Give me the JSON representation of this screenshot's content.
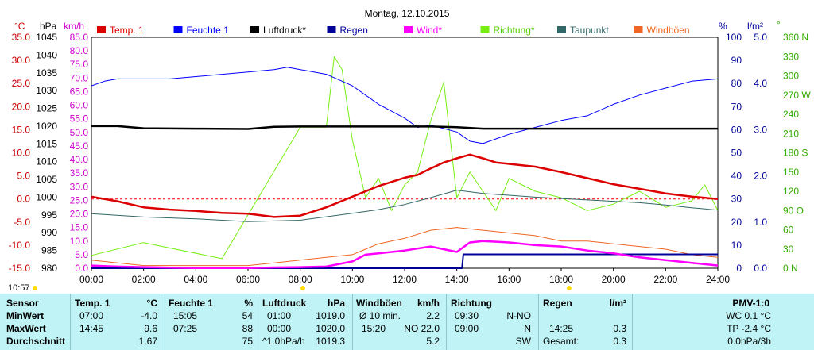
{
  "title": "Montag, 12.10.2015",
  "clock": "10:57",
  "units": {
    "temp": "°C",
    "hpa": "hPa",
    "kmh": "km/h",
    "pct": "%",
    "rain": "l/m²",
    "deg": "°"
  },
  "legend": [
    {
      "name": "Temp. 1",
      "color": "#dd0000"
    },
    {
      "name": "Feuchte 1",
      "color": "#0000ff"
    },
    {
      "name": "Luftdruck*",
      "color": "#000000"
    },
    {
      "name": "Regen",
      "color": "#000099"
    },
    {
      "name": "Wind*",
      "color": "#ff00ff"
    },
    {
      "name": "Richtung*",
      "color": "#77ee11"
    },
    {
      "name": "Taupunkt",
      "color": "#336666"
    },
    {
      "name": "Windböen",
      "color": "#ee6622"
    }
  ],
  "axes": {
    "temp": {
      "ticks": [
        "35.0",
        "30.0",
        "25.0",
        "20.0",
        "15.0",
        "10.0",
        "5.0",
        "0.0",
        "-5.0",
        "-10.0",
        "-15.0"
      ],
      "color": "#cc0000"
    },
    "hpa": {
      "ticks": [
        "1045",
        "1040",
        "1035",
        "1030",
        "1025",
        "1020",
        "1015",
        "1010",
        "1005",
        "1000",
        "995",
        "990",
        "985",
        "980"
      ],
      "color": "#000000"
    },
    "kmh": {
      "ticks": [
        "85.0",
        "80.0",
        "75.0",
        "70.0",
        "65.0",
        "60.0",
        "55.0",
        "50.0",
        "45.0",
        "40.0",
        "35.0",
        "30.0",
        "25.0",
        "20.0",
        "15.0",
        "10.0",
        "5.0",
        "0.0"
      ],
      "color": "#cc00cc"
    },
    "pct": {
      "ticks": [
        "100",
        "90",
        "80",
        "70",
        "60",
        "50",
        "40",
        "30",
        "20",
        "10",
        "0"
      ],
      "color": "#000099"
    },
    "rain": {
      "ticks": [
        "5.0",
        "4.0",
        "3.0",
        "2.0",
        "1.0",
        "0.0"
      ],
      "color": "#000099"
    },
    "deg": {
      "ticks": [
        "360 N",
        "330",
        "300",
        "270 W",
        "240",
        "210",
        "180 S",
        "150",
        "120",
        "90 O",
        "60",
        "30",
        "0 N"
      ],
      "color": "#33aa00"
    },
    "time": {
      "ticks": [
        "00:00",
        "02:00",
        "04:00",
        "06:00",
        "08:00",
        "10:00",
        "12:00",
        "14:00",
        "16:00",
        "18:00",
        "20:00",
        "22:00",
        "24:00"
      ]
    }
  },
  "chart_data": {
    "type": "line",
    "title": "Montag, 12.10.2015",
    "x_unit": "hour",
    "xlim": [
      0,
      24
    ],
    "series": [
      {
        "name": "Temp. 1",
        "unit": "°C",
        "ylim": [
          -15,
          35
        ],
        "x": [
          0,
          1,
          2,
          3,
          4,
          5,
          6,
          7,
          8,
          9,
          10,
          11,
          12,
          12.5,
          13,
          13.5,
          14,
          14.5,
          15,
          15.5,
          16,
          17,
          18,
          19,
          20,
          21,
          22,
          23,
          24
        ],
        "y": [
          0.5,
          -0.5,
          -1.8,
          -2.3,
          -2.6,
          -3.0,
          -3.2,
          -3.9,
          -3.6,
          -1.8,
          0.5,
          2.8,
          4.6,
          5.2,
          6.6,
          7.9,
          8.8,
          9.6,
          8.8,
          7.9,
          7.6,
          7.0,
          5.8,
          4.5,
          3.2,
          2.2,
          1.2,
          0.5,
          0.0
        ]
      },
      {
        "name": "Feuchte 1",
        "unit": "%",
        "ylim": [
          0,
          100
        ],
        "x": [
          0,
          0.5,
          1,
          2,
          3,
          4,
          5,
          6,
          7,
          7.5,
          8,
          9,
          10,
          11,
          12,
          12.5,
          13,
          14,
          14.5,
          15,
          15.5,
          16,
          17,
          18,
          19,
          20,
          21,
          22,
          23,
          24
        ],
        "y": [
          79,
          81,
          82,
          82,
          82,
          83,
          84,
          85,
          86,
          87,
          86,
          84,
          79,
          71,
          65,
          61,
          62,
          59,
          55,
          54,
          56,
          58,
          61,
          64,
          66,
          71,
          75,
          78,
          81,
          82
        ]
      },
      {
        "name": "Luftdruck*",
        "unit": "hPa",
        "ylim": [
          980,
          1045
        ],
        "x": [
          0,
          1,
          2,
          4,
          6,
          7,
          8,
          10,
          12,
          13,
          14,
          15,
          16,
          18,
          20,
          22,
          24
        ],
        "y": [
          1020.0,
          1020.0,
          1019.4,
          1019.3,
          1019.2,
          1019.8,
          1019.9,
          1019.9,
          1019.9,
          1019.9,
          1019.7,
          1019.3,
          1019.3,
          1019.3,
          1019.3,
          1019.3,
          1019.3
        ]
      },
      {
        "name": "Regen",
        "unit": "l/m²",
        "ylim": [
          0,
          5
        ],
        "x": [
          0,
          14.2,
          14.25,
          24
        ],
        "y": [
          0,
          0,
          0.3,
          0.3
        ]
      },
      {
        "name": "Wind*",
        "unit": "km/h",
        "ylim": [
          0,
          85
        ],
        "x": [
          0,
          1,
          2,
          3,
          4,
          5,
          6,
          7,
          8,
          9,
          10,
          10.5,
          11,
          12,
          13,
          14,
          14.5,
          15,
          16,
          17,
          18,
          19,
          20,
          21,
          22,
          23,
          24
        ],
        "y": [
          1.0,
          0.6,
          0.4,
          0.2,
          0.1,
          0.1,
          0.1,
          0.3,
          0.4,
          0.6,
          2.5,
          5.0,
          5.5,
          6.5,
          8.0,
          6.0,
          9.5,
          10.0,
          9.5,
          8.5,
          8.0,
          6.5,
          5.5,
          4.0,
          3.0,
          2.0,
          1.0
        ]
      },
      {
        "name": "Richtung*",
        "unit": "°",
        "ylim": [
          0,
          360
        ],
        "x": [
          0,
          2,
          5,
          8,
          9,
          9.3,
          9.6,
          10,
          10.5,
          11,
          11.5,
          12,
          12.5,
          13,
          13.5,
          14,
          14.5,
          15,
          15.5,
          16,
          17,
          18,
          19,
          20,
          21,
          22,
          23,
          23.5,
          24
        ],
        "y": [
          20,
          40,
          15,
          220,
          220,
          330,
          310,
          200,
          110,
          140,
          90,
          130,
          150,
          230,
          290,
          110,
          150,
          120,
          90,
          140,
          120,
          110,
          90,
          100,
          120,
          95,
          105,
          130,
          90
        ]
      },
      {
        "name": "Taupunkt",
        "unit": "°C",
        "ylim": [
          -15,
          35
        ],
        "x": [
          0,
          2,
          4,
          6,
          8,
          10,
          11,
          12,
          13,
          14,
          15,
          16,
          17,
          18,
          19,
          20,
          21,
          22,
          23,
          24
        ],
        "y": [
          -3.2,
          -3.9,
          -4.3,
          -4.9,
          -4.6,
          -3.1,
          -2.3,
          -1.2,
          0.3,
          1.9,
          1.2,
          0.8,
          0.4,
          0.1,
          -0.2,
          -0.5,
          -0.8,
          -1.3,
          -1.9,
          -2.4
        ]
      },
      {
        "name": "Windböen",
        "unit": "km/h",
        "ylim": [
          0,
          85
        ],
        "x": [
          0,
          1,
          2,
          3,
          4,
          5,
          6,
          7,
          8,
          9,
          10,
          10.5,
          11,
          12,
          13,
          14,
          15,
          16,
          17,
          18,
          19,
          20,
          21,
          22,
          23,
          24
        ],
        "y": [
          3,
          2,
          1,
          1,
          1,
          1,
          1,
          2,
          3,
          4,
          5,
          7,
          9,
          11,
          14,
          15,
          14,
          13,
          12,
          10,
          10,
          9,
          8,
          7,
          5,
          4
        ]
      }
    ]
  },
  "stats": {
    "headers": {
      "sensor": "Sensor",
      "temp": "Temp. 1",
      "temp_u": "°C",
      "hum": "Feuchte 1",
      "hum_u": "%",
      "press": "Luftdruck",
      "press_u": "hPa",
      "gust": "Windböen",
      "gust_u": "km/h",
      "dir": "Richtung",
      "rain": "Regen",
      "rain_u": "l/m²",
      "pmv": "PMV-1:0"
    },
    "rows": [
      {
        "label": "MinWert",
        "temp_t": "07:00",
        "temp_v": "-4.0",
        "hum_t": "15:05",
        "hum_v": "54",
        "press_t": "01:00",
        "press_v": "1019.0",
        "gust_t": "Ø 10 min.",
        "gust_v": "2.2",
        "dir_t": "09:30",
        "dir_v": "N-NO",
        "rain_t": "",
        "rain_v": "",
        "pmv": "WC 0.1 °C"
      },
      {
        "label": "MaxWert",
        "temp_t": "14:45",
        "temp_v": "9.6",
        "hum_t": "07:25",
        "hum_v": "88",
        "press_t": "00:00",
        "press_v": "1020.0",
        "gust_t": "15:20",
        "gust_v": "NO 22.0",
        "dir_t": "09:00",
        "dir_v": "N",
        "rain_t": "14:25",
        "rain_v": "0.3",
        "pmv": "TP -2.4 °C"
      },
      {
        "label": "Durchschnitt",
        "temp_t": "",
        "temp_v": "1.67",
        "hum_t": "",
        "hum_v": "75",
        "press_t": "^1.0hPa/h",
        "press_v": "1019.3",
        "gust_t": "",
        "gust_v": "5.2",
        "dir_t": "",
        "dir_v": "SW",
        "rain_t": "Gesamt:",
        "rain_v": "0.3",
        "pmv": "0.0hPa/3h"
      }
    ]
  }
}
